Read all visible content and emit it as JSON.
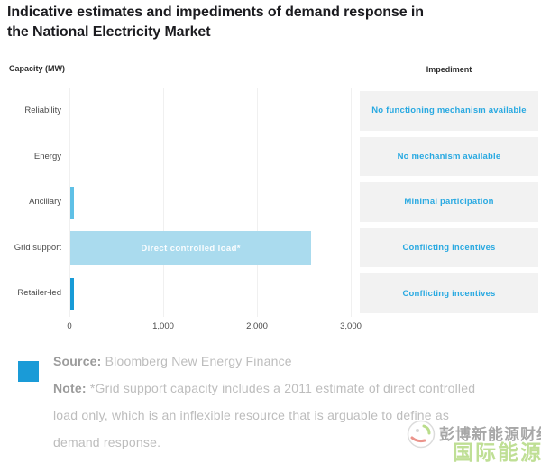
{
  "title_lines": [
    "Indicative estimates and impediments of demand response in",
    "the National Electricity Market"
  ],
  "headers": {
    "capacity": "Capacity (MW)",
    "impediment": "Impediment"
  },
  "chart_data": {
    "type": "bar",
    "orientation": "horizontal",
    "title": "Indicative estimates and impediments of demand response in the National Electricity Market",
    "xlabel": "Capacity (MW)",
    "xlim": [
      0,
      3000
    ],
    "grid": "vertical-light",
    "x_ticks": [
      {
        "value": 0,
        "label": "0"
      },
      {
        "value": 1000,
        "label": "1,000"
      },
      {
        "value": 2000,
        "label": "2,000"
      },
      {
        "value": 3000,
        "label": "3,000"
      }
    ],
    "rows": [
      {
        "category": "Reliability",
        "value": 0,
        "bar_label": "",
        "bar_color": "",
        "impediment": "No functioning mechanism available"
      },
      {
        "category": "Energy",
        "value": 0,
        "bar_label": "",
        "bar_color": "",
        "impediment": "No mechanism available"
      },
      {
        "category": "Ancillary",
        "value": 40,
        "bar_label": "",
        "bar_color": "#5fc0e6",
        "impediment": "Minimal participation"
      },
      {
        "category": "Grid support",
        "value": 2570,
        "bar_label": "Direct controlled load*",
        "bar_color": "#aadbee",
        "impediment": "Conflicting incentives"
      },
      {
        "category": "Retailer-led",
        "value": 40,
        "bar_label": "",
        "bar_color": "#189bd7",
        "impediment": "Conflicting incentives"
      }
    ]
  },
  "footer": {
    "source_label": "Source:",
    "source_text": " Bloomberg New Energy Finance",
    "note_label": "Note:",
    "note_text": " *Grid support capacity includes a 2011 estimate of direct controlled load only, which is an inflexible resource that is arguable to define as demand response."
  },
  "watermark": {
    "line1": "彭博新能源财经",
    "line2": "国际能源网"
  },
  "colors": {
    "accent_blue": "#1a9bd7",
    "light_bar": "#aadbee",
    "mid_bar": "#5fc0e6",
    "impediment_text": "#29a9e1",
    "impediment_bg": "#f2f2f2",
    "title_text": "#1b1b1f"
  }
}
